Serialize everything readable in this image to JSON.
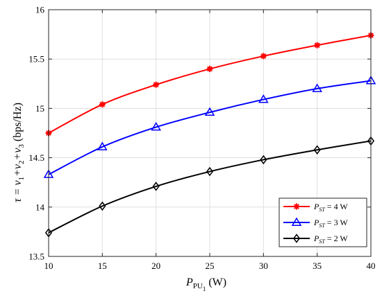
{
  "chart_data": {
    "type": "line",
    "x": [
      10,
      15,
      20,
      25,
      30,
      35,
      40
    ],
    "xlim": [
      10,
      40
    ],
    "ylim": [
      13.5,
      16
    ],
    "xticks": [
      "10",
      "15",
      "20",
      "25",
      "30",
      "35",
      "40"
    ],
    "yticks": [
      "13.5",
      "14",
      "14.5",
      "15",
      "15.5",
      "16"
    ],
    "grid": true,
    "legend_position": "bottom-right",
    "xlabel": {
      "main": "P",
      "sub": "PU",
      "subsub": "1",
      "unit": "(W)"
    },
    "ylabel": {
      "text": "τ = v",
      "s1": "1",
      "plus1": "+v",
      "s2": "2",
      "plus2": "+v",
      "s3": "3",
      "unit": "(bps/Hz)"
    },
    "series": [
      {
        "legend_main": "P",
        "legend_sub": "ST",
        "legend_rest": "= 4 W",
        "color": "#ff0000",
        "marker": "asterisk",
        "values": [
          14.75,
          15.04,
          15.24,
          15.4,
          15.53,
          15.64,
          15.74
        ]
      },
      {
        "legend_main": "P",
        "legend_sub": "ST",
        "legend_rest": "= 3 W",
        "color": "#0000ff",
        "marker": "triangle",
        "values": [
          14.33,
          14.61,
          14.81,
          14.96,
          15.09,
          15.2,
          15.28
        ]
      },
      {
        "legend_main": "P",
        "legend_sub": "ST",
        "legend_rest": "= 2 W",
        "color": "#000000",
        "marker": "diamond",
        "values": [
          13.74,
          14.01,
          14.21,
          14.36,
          14.48,
          14.58,
          14.67
        ]
      }
    ]
  }
}
